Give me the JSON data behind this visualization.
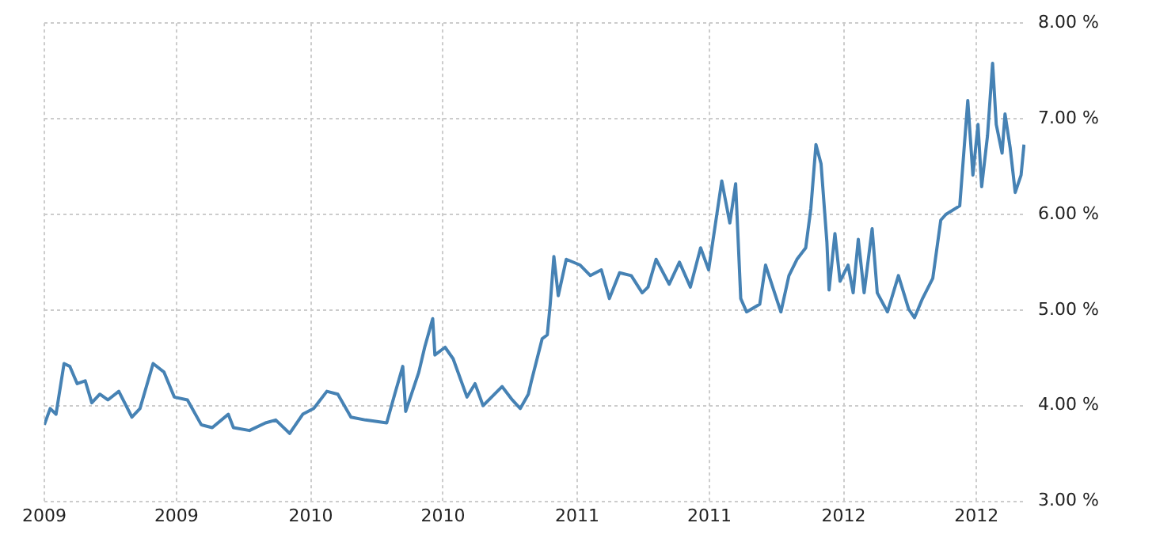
{
  "chart_data": {
    "type": "line",
    "color": "#4682b4",
    "x": [
      "2009-01-01",
      "2009-01-09",
      "2009-01-17",
      "2009-01-28",
      "2009-02-05",
      "2009-02-15",
      "2009-02-26",
      "2009-03-07",
      "2009-03-18",
      "2009-03-29",
      "2009-04-13",
      "2009-05-01",
      "2009-05-12",
      "2009-05-30",
      "2009-06-14",
      "2009-06-28",
      "2009-07-16",
      "2009-08-04",
      "2009-08-19",
      "2009-09-10",
      "2009-09-17",
      "2009-10-09",
      "2009-10-31",
      "2009-11-14",
      "2009-12-03",
      "2009-12-21",
      "2010-01-05",
      "2010-01-23",
      "2010-02-07",
      "2010-02-25",
      "2010-03-17",
      "2010-04-15",
      "2010-04-26",
      "2010-05-07",
      "2010-05-11",
      "2010-05-29",
      "2010-06-06",
      "2010-06-17",
      "2010-06-20",
      "2010-07-04",
      "2010-07-15",
      "2010-08-03",
      "2010-08-14",
      "2010-08-25",
      "2010-09-20",
      "2010-10-04",
      "2010-10-15",
      "2010-10-26",
      "2010-10-30",
      "2010-11-14",
      "2010-11-21",
      "2010-11-25",
      "2010-11-30",
      "2010-12-06",
      "2010-12-17",
      "2011-01-05",
      "2011-01-19",
      "2011-02-03",
      "2011-02-14",
      "2011-02-28",
      "2011-03-16",
      "2011-03-31",
      "2011-04-08",
      "2011-04-19",
      "2011-05-07",
      "2011-05-21",
      "2011-06-05",
      "2011-06-19",
      "2011-06-30",
      "2011-07-18",
      "2011-07-29",
      "2011-08-06",
      "2011-08-13",
      "2011-08-21",
      "2011-09-08",
      "2011-09-16",
      "2011-09-27",
      "2011-10-07",
      "2011-10-18",
      "2011-10-29",
      "2011-11-10",
      "2011-11-17",
      "2011-11-24",
      "2011-12-01",
      "2011-12-09",
      "2011-12-12",
      "2011-12-20",
      "2011-12-27",
      "2012-01-07",
      "2012-01-14",
      "2012-01-21",
      "2012-01-29",
      "2012-02-09",
      "2012-02-16",
      "2012-03-01",
      "2012-03-16",
      "2012-03-30",
      "2012-04-07",
      "2012-04-18",
      "2012-05-02",
      "2012-05-13",
      "2012-05-20",
      "2012-06-08",
      "2012-06-19",
      "2012-06-26",
      "2012-07-03",
      "2012-07-08",
      "2012-07-16",
      "2012-07-23",
      "2012-07-28",
      "2012-08-05",
      "2012-08-09",
      "2012-08-16",
      "2012-08-23",
      "2012-08-31",
      "2012-09-04"
    ],
    "values": [
      3.8,
      3.97,
      3.91,
      4.44,
      4.41,
      4.23,
      4.26,
      4.03,
      4.12,
      4.06,
      4.15,
      3.88,
      3.97,
      4.44,
      4.35,
      4.09,
      4.06,
      3.8,
      3.77,
      3.91,
      3.77,
      3.74,
      3.82,
      3.85,
      3.71,
      3.91,
      3.97,
      4.15,
      4.12,
      3.88,
      3.85,
      3.82,
      4.12,
      4.41,
      3.94,
      4.35,
      4.61,
      4.91,
      4.53,
      4.61,
      4.49,
      4.09,
      4.23,
      4.0,
      4.2,
      4.06,
      3.97,
      4.12,
      4.25,
      4.7,
      4.74,
      5.06,
      5.56,
      5.15,
      5.53,
      5.47,
      5.36,
      5.42,
      5.12,
      5.39,
      5.36,
      5.18,
      5.24,
      5.53,
      5.27,
      5.5,
      5.24,
      5.65,
      5.42,
      6.35,
      5.91,
      6.32,
      5.12,
      4.98,
      5.06,
      5.47,
      5.21,
      4.98,
      5.36,
      5.53,
      5.65,
      6.06,
      6.73,
      6.53,
      5.71,
      5.21,
      5.8,
      5.3,
      5.47,
      5.18,
      5.74,
      5.18,
      5.85,
      5.18,
      4.98,
      5.36,
      5.01,
      4.92,
      5.12,
      5.33,
      5.94,
      6.0,
      6.09,
      7.19,
      6.41,
      6.94,
      6.29,
      6.82,
      7.58,
      6.94,
      6.64,
      7.05,
      6.7,
      6.23,
      6.41,
      6.73
    ],
    "xlim": [
      "2009-01-01",
      "2012-09-06"
    ],
    "xticks": [
      {
        "value": "2009-01-01",
        "label": "2009"
      },
      {
        "value": "2009-07-01",
        "label": "2009"
      },
      {
        "value": "2010-01-01",
        "label": "2010"
      },
      {
        "value": "2010-07-01",
        "label": "2010"
      },
      {
        "value": "2011-01-01",
        "label": "2011"
      },
      {
        "value": "2011-07-01",
        "label": "2011"
      },
      {
        "value": "2012-01-01",
        "label": "2012"
      },
      {
        "value": "2012-07-01",
        "label": "2012"
      }
    ],
    "ylim": [
      3,
      8
    ],
    "yticks": [
      {
        "value": 3,
        "label": "3.00 %"
      },
      {
        "value": 4,
        "label": "4.00 %"
      },
      {
        "value": 5,
        "label": "5.00 %"
      },
      {
        "value": 6,
        "label": "6.00 %"
      },
      {
        "value": 7,
        "label": "7.00 %"
      },
      {
        "value": 8,
        "label": "8.00 %"
      }
    ],
    "grid": true,
    "line_style": "solid"
  }
}
